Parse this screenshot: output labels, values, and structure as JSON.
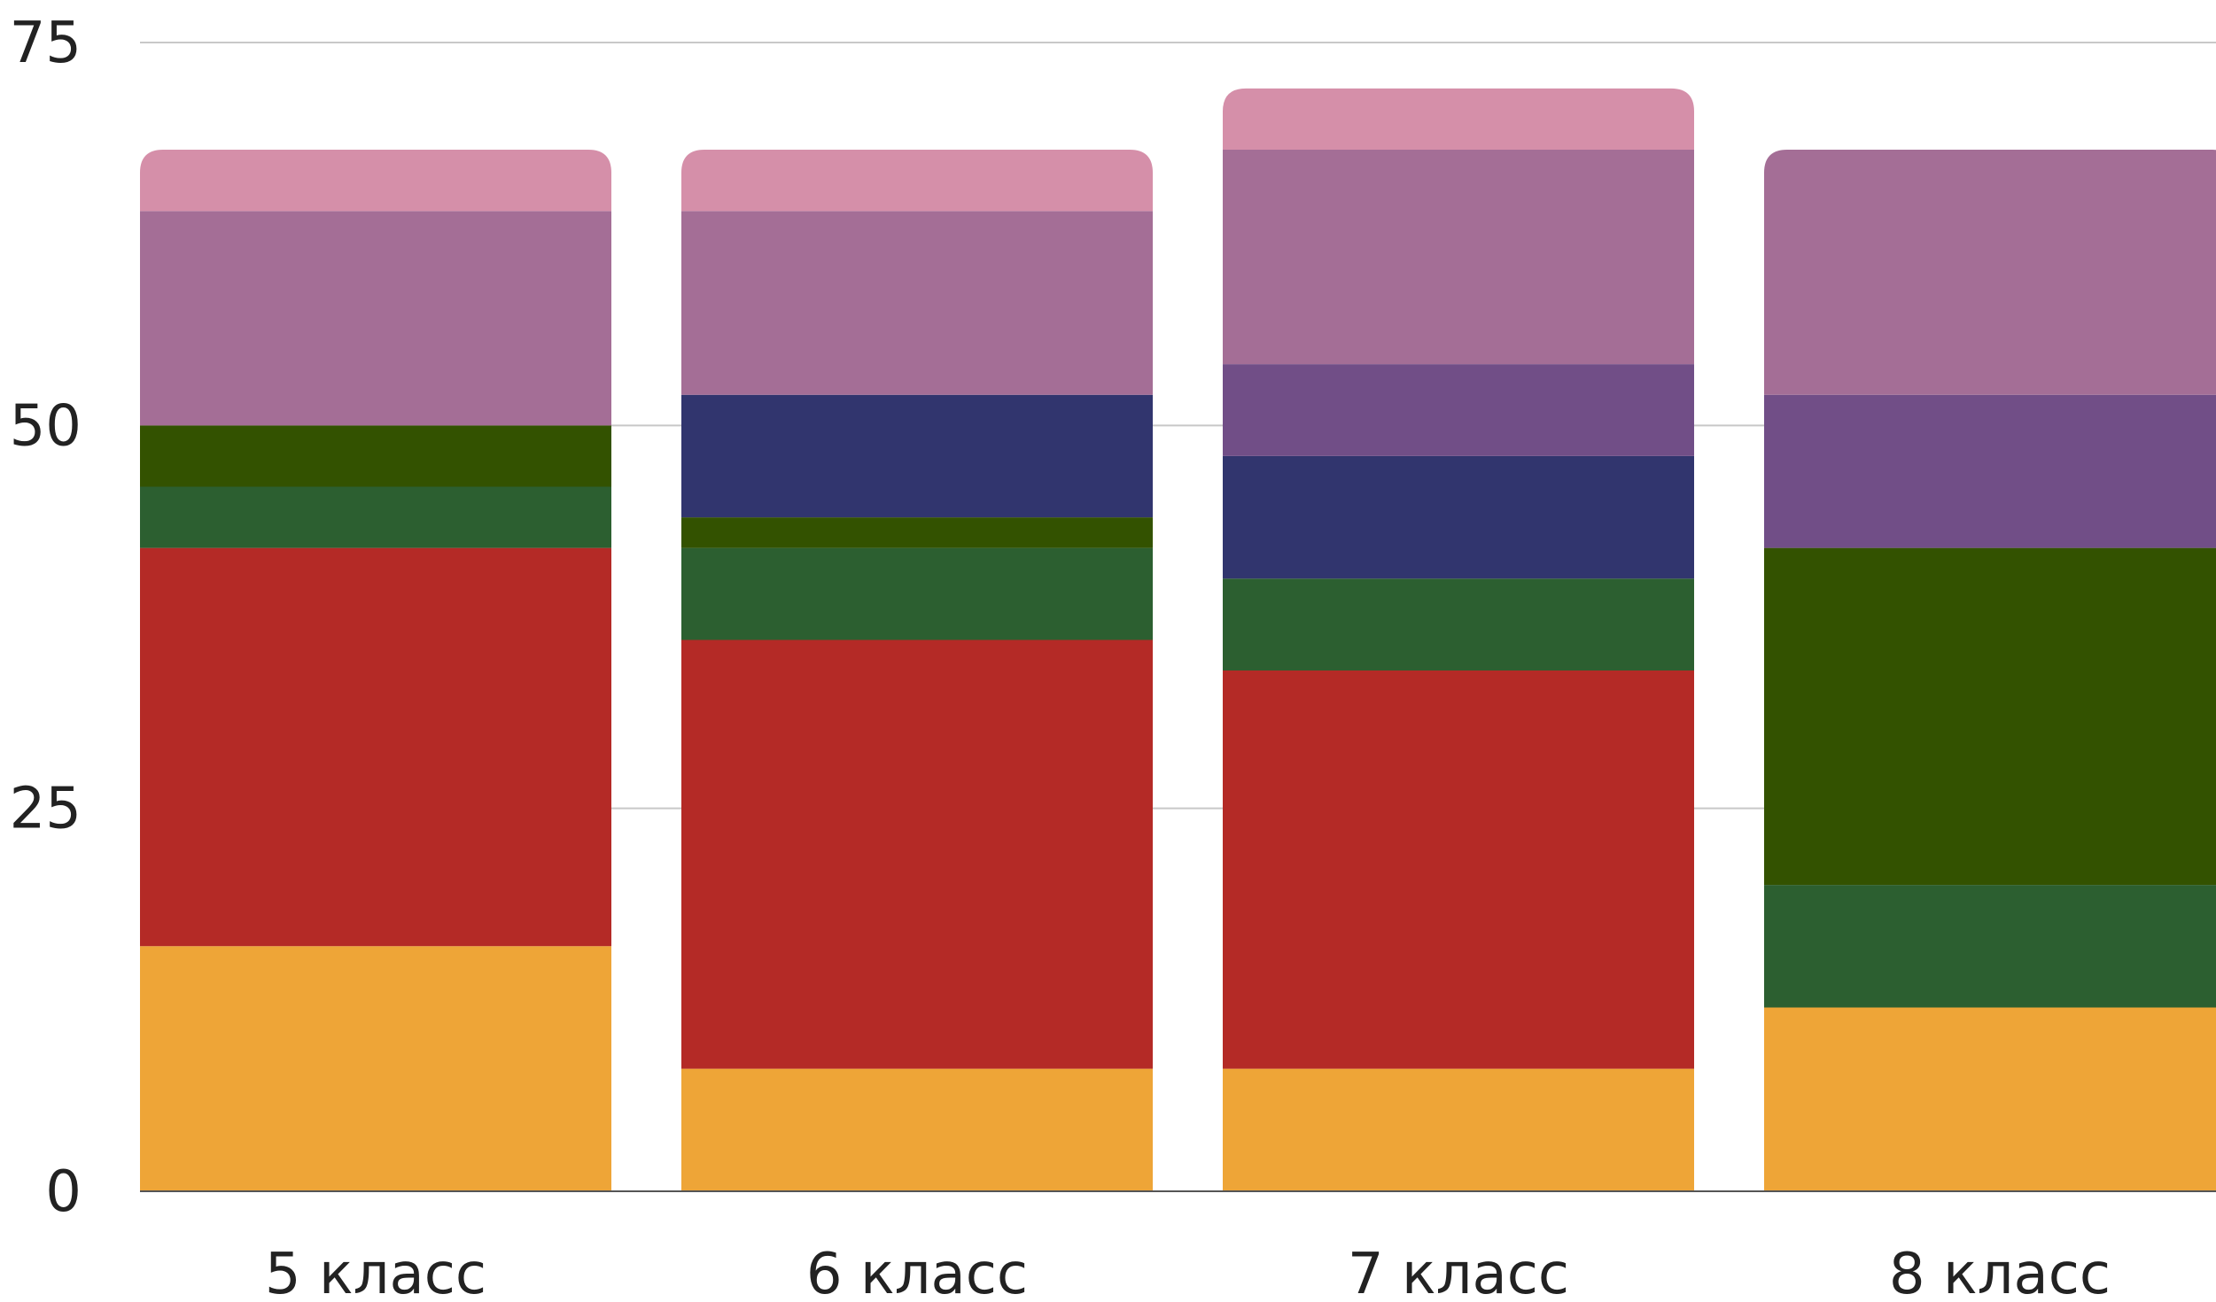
{
  "chart_data": {
    "type": "bar",
    "stacked": true,
    "categories": [
      "5 класс",
      "6 класс",
      "7 класс",
      "8 класс"
    ],
    "ylim": [
      0,
      75
    ],
    "yticks": [
      0,
      25,
      50,
      75
    ],
    "grid": true,
    "title": "",
    "xlabel": "",
    "ylabel": "",
    "series": [
      {
        "color": "#EEA537",
        "values": [
          16,
          8,
          8,
          12
        ]
      },
      {
        "color": "#B42A26",
        "values": [
          26,
          28,
          26,
          0
        ]
      },
      {
        "color": "#2C5F30",
        "values": [
          4,
          6,
          6,
          8
        ]
      },
      {
        "color": "#335200",
        "values": [
          4,
          2,
          0,
          22
        ]
      },
      {
        "color": "#31356E",
        "values": [
          0,
          8,
          8,
          0
        ]
      },
      {
        "color": "#714E87",
        "values": [
          0,
          0,
          6,
          10
        ]
      },
      {
        "color": "#A46E96",
        "values": [
          14,
          12,
          14,
          16
        ]
      },
      {
        "color": "#D58FA9",
        "values": [
          4,
          4,
          4,
          0
        ]
      }
    ]
  }
}
